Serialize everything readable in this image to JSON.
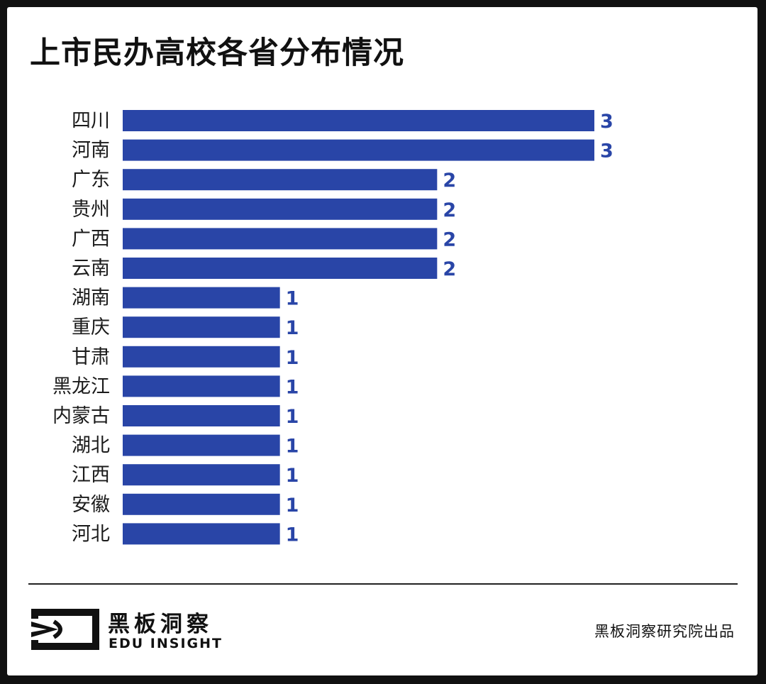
{
  "header": {
    "title": "上市民办高校各省分布情况"
  },
  "chart_data": {
    "type": "bar",
    "orientation": "horizontal",
    "title": "上市民办高校各省分布情况",
    "xlabel": "",
    "ylabel": "",
    "categories": [
      "四川",
      "河南",
      "广东",
      "贵州",
      "广西",
      "云南",
      "湖南",
      "重庆",
      "甘肃",
      "黑龙江",
      "内蒙古",
      "湖北",
      "江西",
      "安徽",
      "河北"
    ],
    "values": [
      3,
      3,
      2,
      2,
      2,
      2,
      1,
      1,
      1,
      1,
      1,
      1,
      1,
      1,
      1
    ],
    "xlim": [
      0,
      3
    ],
    "grid": false,
    "bar_color": "#2945a7",
    "label_color": "#2945a7"
  },
  "footer": {
    "brand_cn": "黑板洞察",
    "brand_en": "EDU INSIGHT",
    "credit": "黑板洞察研究院出品"
  }
}
